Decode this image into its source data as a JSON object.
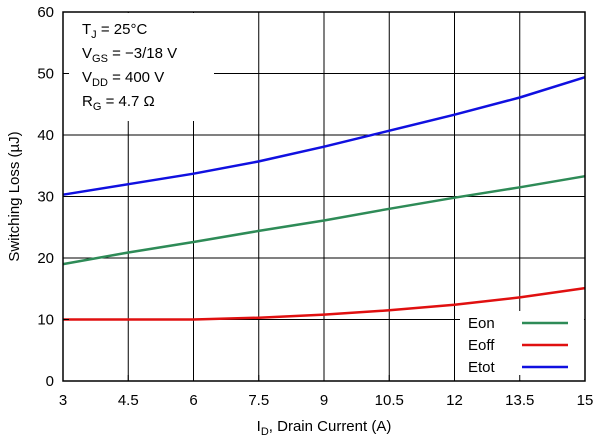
{
  "chart_data": {
    "type": "line",
    "xlabel_main": "I",
    "xlabel_sub": "D",
    "xlabel_rest": ", Drain Current (A)",
    "ylabel": "Switching Loss (µJ)",
    "xlim": [
      3,
      15
    ],
    "ylim": [
      0,
      60
    ],
    "x_ticks": [
      3,
      4.5,
      6,
      7.5,
      9,
      10.5,
      12,
      13.5,
      15
    ],
    "x_tick_labels": [
      "3",
      "4.5",
      "6",
      "7.5",
      "9",
      "10.5",
      "12",
      "13.5",
      "15"
    ],
    "y_ticks": [
      0,
      10,
      20,
      30,
      40,
      50,
      60
    ],
    "y_tick_labels": [
      "0",
      "10",
      "20",
      "30",
      "40",
      "50",
      "60"
    ],
    "grid": true,
    "conditions": [
      {
        "main": "T",
        "sub": "J",
        "rest": " = 25°C"
      },
      {
        "main": "V",
        "sub": "GS",
        "rest": " = −3/18 V"
      },
      {
        "main": "V",
        "sub": "DD",
        "rest": " = 400 V"
      },
      {
        "main": "R",
        "sub": "G",
        "rest": " = 4.7 Ω"
      }
    ],
    "legend_position": "bottom-right",
    "series": [
      {
        "name": "Eon",
        "color": "#2e8b57",
        "x": [
          3,
          4.5,
          6,
          7.5,
          9,
          10.5,
          12,
          13.5,
          15
        ],
        "values": [
          19.0,
          20.9,
          22.6,
          24.4,
          26.1,
          28.0,
          29.8,
          31.5,
          33.3
        ]
      },
      {
        "name": "Eoff",
        "color": "#e01010",
        "x": [
          3,
          4.5,
          6,
          7.5,
          9,
          10.5,
          12,
          13.5,
          15
        ],
        "values": [
          10.0,
          10.0,
          10.0,
          10.3,
          10.8,
          11.5,
          12.4,
          13.6,
          15.1
        ]
      },
      {
        "name": "Etot",
        "color": "#1010e0",
        "x": [
          3,
          4.5,
          6,
          7.5,
          9,
          10.5,
          12,
          13.5,
          15
        ],
        "values": [
          30.3,
          32.0,
          33.7,
          35.7,
          38.1,
          40.7,
          43.3,
          46.1,
          49.4
        ]
      }
    ]
  }
}
